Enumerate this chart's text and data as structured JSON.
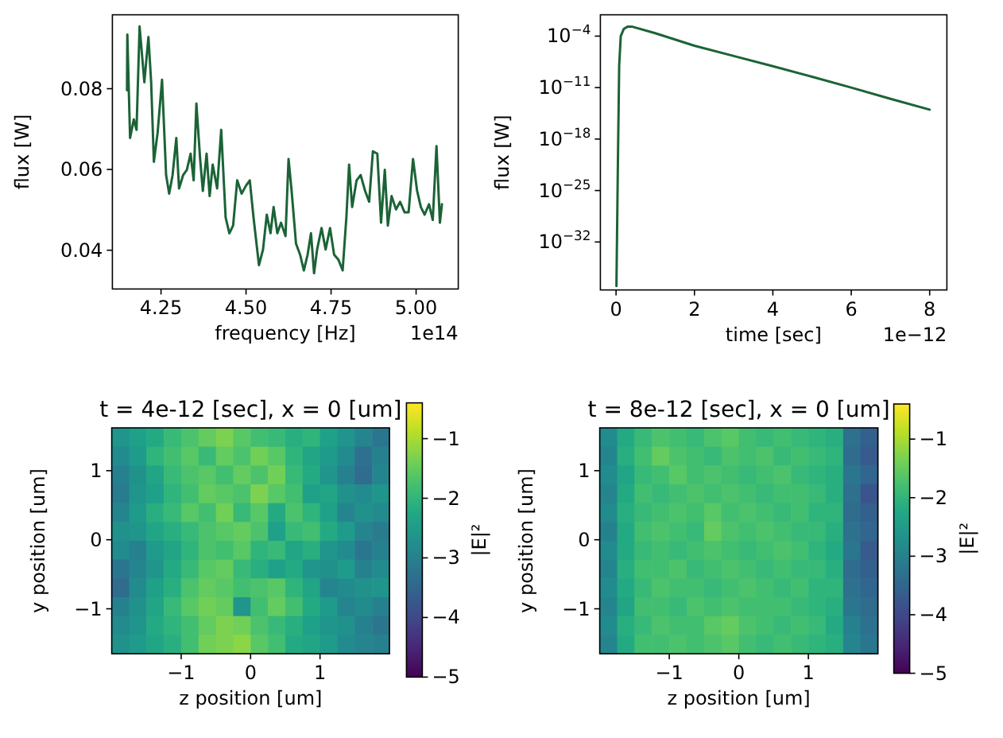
{
  "chart_data": [
    {
      "type": "line",
      "xlabel": "frequency [Hz]",
      "ylabel": "flux [W]",
      "annotations": [
        "1e14"
      ],
      "xlim": [
        4.107,
        5.124
      ],
      "ylim": [
        0.0304,
        0.0983
      ],
      "xticks": [
        4.25,
        {
          "value": 4.5,
          "label": "4.50"
        },
        4.75,
        {
          "value": 5,
          "label": "5.00"
        }
      ],
      "yticks": [
        0.04,
        0.06,
        0.08
      ],
      "grid": false,
      "series": [
        {
          "color": "#1b6336",
          "x": [
            4.15,
            4.151,
            4.159,
            4.17,
            4.178,
            4.187,
            4.201,
            4.213,
            4.221,
            4.229,
            4.24,
            4.253,
            4.265,
            4.274,
            4.284,
            4.295,
            4.303,
            4.315,
            4.326,
            4.337,
            4.346,
            4.354,
            4.365,
            4.373,
            4.384,
            4.393,
            4.402,
            4.415,
            4.427,
            4.44,
            4.451,
            4.462,
            4.474,
            4.487,
            4.5,
            4.511,
            4.522,
            4.538,
            4.55,
            4.561,
            4.572,
            4.581,
            4.592,
            4.603,
            4.616,
            4.625,
            4.634,
            4.647,
            4.659,
            4.67,
            4.681,
            4.691,
            4.7,
            4.709,
            4.722,
            4.734,
            4.747,
            4.759,
            4.772,
            4.784,
            4.795,
            4.803,
            4.812,
            4.825,
            4.837,
            4.85,
            4.862,
            4.873,
            4.886,
            4.897,
            4.908,
            4.917,
            4.928,
            4.941,
            4.953,
            4.966,
            4.978,
            4.991,
            5.003,
            5.014,
            5.025,
            5.038,
            5.049,
            5.06,
            5.07,
            5.076
          ],
          "values": [
            0.0796,
            0.0934,
            0.0678,
            0.0724,
            0.0698,
            0.0954,
            0.0816,
            0.0928,
            0.0816,
            0.0619,
            0.0691,
            0.0822,
            0.0586,
            0.054,
            0.0586,
            0.0678,
            0.0553,
            0.0586,
            0.0599,
            0.0639,
            0.0573,
            0.0763,
            0.0626,
            0.0547,
            0.0639,
            0.0534,
            0.0612,
            0.0553,
            0.0698,
            0.0481,
            0.0442,
            0.0461,
            0.0573,
            0.054,
            0.056,
            0.0573,
            0.0481,
            0.0363,
            0.0402,
            0.0488,
            0.0442,
            0.0507,
            0.0442,
            0.0468,
            0.0435,
            0.0626,
            0.0547,
            0.0416,
            0.0389,
            0.035,
            0.0389,
            0.0442,
            0.0343,
            0.0402,
            0.0455,
            0.0402,
            0.0455,
            0.0389,
            0.0376,
            0.035,
            0.0481,
            0.0612,
            0.0507,
            0.0573,
            0.0586,
            0.0547,
            0.052,
            0.0645,
            0.0639,
            0.0468,
            0.0599,
            0.0461,
            0.0534,
            0.0501,
            0.052,
            0.0494,
            0.0494,
            0.0626,
            0.0547,
            0.0507,
            0.0488,
            0.0514,
            0.0475,
            0.0658,
            0.0468,
            0.0514
          ]
        }
      ]
    },
    {
      "type": "line",
      "xlabel": "time [sec]",
      "ylabel": "flux [W]",
      "annotations": [
        "1e−12"
      ],
      "log": "y",
      "xlim": [
        -0.4,
        8.44
      ],
      "ylim": [
        3e-39,
        0.08
      ],
      "xticks": [
        0,
        2,
        4,
        6,
        8
      ],
      "yticks": [
        {
          "value": 0.0001,
          "label": "10$^{−4}$"
        },
        {
          "value": 1e-11,
          "label": "10$^{−11}$"
        },
        {
          "value": 1e-18,
          "label": "10$^{−18}$"
        },
        {
          "value": 1e-25,
          "label": "10$^{−25}$"
        },
        {
          "value": 1e-32,
          "label": "10$^{−32}$"
        }
      ],
      "grid": false,
      "series": [
        {
          "color": "#1b6336",
          "x": [
            0.01,
            0.05,
            0.08,
            0.12,
            0.2,
            0.3,
            0.4,
            1,
            2,
            3,
            4,
            5,
            6,
            7,
            8
          ],
          "values": [
            1e-38,
            1e-20,
            1e-08,
            0.0001,
            0.001,
            0.002,
            0.002,
            0.00025,
            5e-06,
            2e-07,
            8e-09,
            3e-10,
            1e-11,
            3e-13,
            1e-14
          ]
        }
      ]
    },
    {
      "type": "heatmap",
      "title": "t = 4e-12 [sec], x = 0 [um]",
      "xlabel": "z position [um]",
      "ylabel": "y position [um]",
      "clabel": "|E|²",
      "xlim": [
        -2,
        2
      ],
      "ylim": [
        -1.65,
        1.62
      ],
      "xticks": [
        {
          "value": -1,
          "label": "−1"
        },
        0,
        1
      ],
      "yticks": [
        {
          "value": -1,
          "label": "−1"
        },
        0,
        1
      ],
      "clim": [
        -5,
        -0.4
      ],
      "cticks": [
        {
          "value": -5,
          "label": "−5"
        },
        {
          "value": -4,
          "label": "−4"
        },
        {
          "value": -3,
          "label": "−3"
        },
        {
          "value": -2,
          "label": "−2"
        },
        {
          "value": -1,
          "label": "−1"
        }
      ],
      "cells": [
        [
          -2.6,
          -2.4,
          -2.2,
          -1.9,
          -1.7,
          -1.5,
          -1.3,
          -1.6,
          -1.8,
          -1.9,
          -2.1,
          -2.0,
          -2.4,
          -2.6,
          -2.9,
          -3.2
        ],
        [
          -2.8,
          -2.5,
          -2.0,
          -1.8,
          -1.6,
          -1.9,
          -1.5,
          -1.7,
          -1.4,
          -1.6,
          -2.0,
          -2.3,
          -2.5,
          -2.8,
          -3.3,
          -3.0
        ],
        [
          -3.0,
          -2.7,
          -2.3,
          -1.9,
          -1.7,
          -1.6,
          -1.8,
          -1.5,
          -1.7,
          -1.4,
          -1.9,
          -2.2,
          -2.6,
          -3.0,
          -3.4,
          -2.9
        ],
        [
          -3.1,
          -2.6,
          -2.4,
          -2.0,
          -1.8,
          -1.5,
          -1.6,
          -1.7,
          -1.3,
          -1.6,
          -1.8,
          -2.4,
          -2.3,
          -2.7,
          -2.8,
          -2.6
        ],
        [
          -2.9,
          -2.5,
          -2.1,
          -1.9,
          -1.6,
          -1.8,
          -1.4,
          -1.9,
          -1.6,
          -2.2,
          -1.7,
          -2.0,
          -2.4,
          -2.9,
          -2.7,
          -2.8
        ],
        [
          -2.7,
          -2.6,
          -2.3,
          -2.1,
          -1.9,
          -1.7,
          -1.6,
          -1.5,
          -1.7,
          -2.4,
          -1.9,
          -1.8,
          -2.2,
          -2.5,
          -2.9,
          -3.1
        ],
        [
          -2.8,
          -3.0,
          -2.5,
          -2.3,
          -2.0,
          -1.7,
          -1.8,
          -1.6,
          -2.0,
          -1.9,
          -2.3,
          -2.1,
          -2.6,
          -2.8,
          -3.2,
          -3.0
        ],
        [
          -3.2,
          -2.9,
          -2.6,
          -2.2,
          -1.9,
          -1.6,
          -1.5,
          -1.9,
          -2.1,
          -2.4,
          -2.2,
          -2.6,
          -2.7,
          -2.5,
          -3.0,
          -2.8
        ],
        [
          -3.4,
          -2.8,
          -2.4,
          -2.1,
          -1.7,
          -1.5,
          -1.6,
          -1.8,
          -1.7,
          -1.6,
          -2.0,
          -2.3,
          -2.9,
          -2.8,
          -2.7,
          -2.6
        ],
        [
          -3.0,
          -2.7,
          -2.3,
          -1.9,
          -1.6,
          -1.4,
          -1.5,
          -2.6,
          -1.8,
          -1.5,
          -1.8,
          -2.2,
          -2.5,
          -2.9,
          -2.8,
          -3.0
        ],
        [
          -2.8,
          -2.6,
          -2.2,
          -2.0,
          -1.8,
          -1.5,
          -1.3,
          -1.4,
          -1.7,
          -1.9,
          -2.1,
          -2.4,
          -2.6,
          -2.7,
          -3.0,
          -3.2
        ],
        [
          -2.7,
          -2.5,
          -2.3,
          -2.1,
          -1.8,
          -1.4,
          -1.3,
          -1.2,
          -1.6,
          -1.8,
          -2.2,
          -2.3,
          -2.5,
          -2.8,
          -2.9,
          -3.0
        ]
      ]
    },
    {
      "type": "heatmap",
      "title": "t = 8e-12 [sec], x = 0 [um]",
      "xlabel": "z position [um]",
      "ylabel": "y position [um]",
      "clabel": "|E|²",
      "xlim": [
        -2,
        2
      ],
      "ylim": [
        -1.65,
        1.62
      ],
      "xticks": [
        {
          "value": -1,
          "label": "−1"
        },
        0,
        1
      ],
      "yticks": [
        {
          "value": -1,
          "label": "−1"
        },
        0,
        1
      ],
      "clim": [
        -5,
        -0.4
      ],
      "cticks": [
        {
          "value": -5,
          "label": "−5"
        },
        {
          "value": -4,
          "label": "−4"
        },
        {
          "value": -3,
          "label": "−3"
        },
        {
          "value": -2,
          "label": "−2"
        },
        {
          "value": -1,
          "label": "−1"
        }
      ],
      "cells": [
        [
          -2.8,
          -2.2,
          -1.9,
          -1.7,
          -1.8,
          -1.9,
          -1.7,
          -1.6,
          -1.8,
          -1.9,
          -1.8,
          -1.9,
          -2.0,
          -2.1,
          -3.3,
          -3.6
        ],
        [
          -2.9,
          -2.1,
          -1.8,
          -1.5,
          -1.7,
          -1.8,
          -1.9,
          -1.7,
          -1.8,
          -1.7,
          -1.9,
          -1.8,
          -1.9,
          -2.0,
          -3.4,
          -3.7
        ],
        [
          -2.8,
          -2.3,
          -1.9,
          -1.8,
          -1.6,
          -1.8,
          -1.7,
          -1.8,
          -1.9,
          -1.8,
          -1.7,
          -1.9,
          -2.0,
          -2.1,
          -3.2,
          -3.5
        ],
        [
          -2.9,
          -2.2,
          -1.8,
          -1.9,
          -1.8,
          -1.7,
          -1.8,
          -1.7,
          -1.8,
          -1.9,
          -1.8,
          -1.8,
          -1.9,
          -2.1,
          -3.3,
          -3.8
        ],
        [
          -2.8,
          -2.1,
          -1.9,
          -1.8,
          -1.7,
          -1.8,
          -1.6,
          -1.8,
          -1.7,
          -1.8,
          -1.9,
          -1.8,
          -2.0,
          -2.0,
          -3.4,
          -3.6
        ],
        [
          -3.0,
          -2.2,
          -1.8,
          -1.7,
          -1.8,
          -1.9,
          -1.5,
          -1.7,
          -1.8,
          -1.7,
          -1.8,
          -1.9,
          -1.9,
          -2.1,
          -3.3,
          -3.5
        ],
        [
          -2.8,
          -2.2,
          -1.9,
          -1.8,
          -1.9,
          -1.8,
          -1.7,
          -1.8,
          -1.9,
          -1.8,
          -1.7,
          -1.8,
          -2.0,
          -2.2,
          -3.2,
          -3.7
        ],
        [
          -2.9,
          -2.1,
          -1.8,
          -1.8,
          -1.7,
          -1.9,
          -1.8,
          -1.7,
          -1.8,
          -1.9,
          -1.8,
          -1.9,
          -1.9,
          -2.1,
          -3.4,
          -3.6
        ],
        [
          -2.8,
          -2.2,
          -1.9,
          -1.7,
          -1.8,
          -1.8,
          -1.9,
          -1.8,
          -1.7,
          -1.8,
          -1.9,
          -1.8,
          -2.0,
          -2.0,
          -3.3,
          -3.5
        ],
        [
          -2.9,
          -2.3,
          -1.8,
          -1.8,
          -1.9,
          -1.7,
          -1.8,
          -1.7,
          -1.8,
          -1.8,
          -1.8,
          -1.9,
          -2.0,
          -2.1,
          -3.2,
          -3.4
        ],
        [
          -2.8,
          -2.1,
          -1.9,
          -1.7,
          -1.8,
          -1.8,
          -1.6,
          -1.5,
          -1.7,
          -1.8,
          -1.9,
          -1.8,
          -1.9,
          -2.2,
          -3.0,
          -3.3
        ],
        [
          -2.9,
          -2.2,
          -1.8,
          -1.8,
          -1.7,
          -1.8,
          -1.7,
          -1.6,
          -1.8,
          -1.9,
          -1.8,
          -1.9,
          -2.0,
          -2.1,
          -2.9,
          -3.2
        ]
      ]
    }
  ]
}
